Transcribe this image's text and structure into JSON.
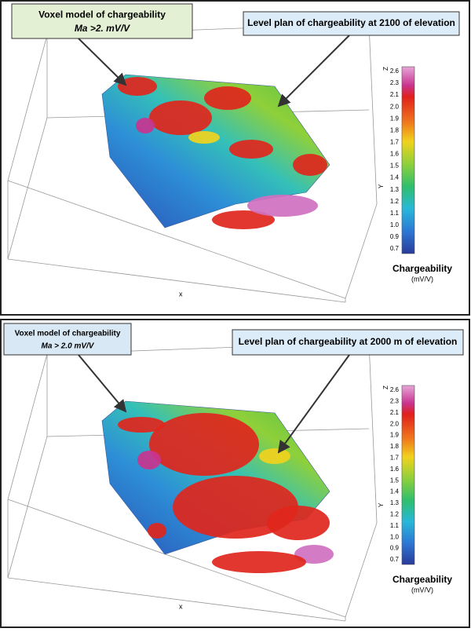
{
  "panels": [
    {
      "callout_left": {
        "title": "Voxel model of chargeability",
        "subtitle": "Ma >2. mV/V"
      },
      "callout_right": "Level plan of chargeability at 2100 of elevation",
      "colorbar": {
        "labels": [
          "2.6",
          "2.3",
          "2.1",
          "2.0",
          "1.9",
          "1.8",
          "1.7",
          "1.6",
          "1.5",
          "1.4",
          "1.3",
          "1.2",
          "1.1",
          "1.0",
          "0.9",
          "0.7"
        ],
        "title": "Chargeability",
        "unit": "(mV/V)"
      },
      "axes": {
        "x": "x",
        "y": "Y",
        "z": "Z"
      }
    },
    {
      "callout_left": {
        "title": "Voxel model of chargeability",
        "subtitle": "Ma > 2.0 mV/V"
      },
      "callout_right": "Level plan of chargeability at 2000 m of elevation",
      "colorbar": {
        "labels": [
          "2.6",
          "2.3",
          "2.1",
          "2.0",
          "1.9",
          "1.8",
          "1.7",
          "1.6",
          "1.5",
          "1.4",
          "1.3",
          "1.2",
          "1.1",
          "1.0",
          "0.9",
          "0.7"
        ],
        "title": "Chargeability",
        "unit": "(mV/V)"
      },
      "axes": {
        "x": "x",
        "y": "Y",
        "z": "Z"
      }
    }
  ]
}
